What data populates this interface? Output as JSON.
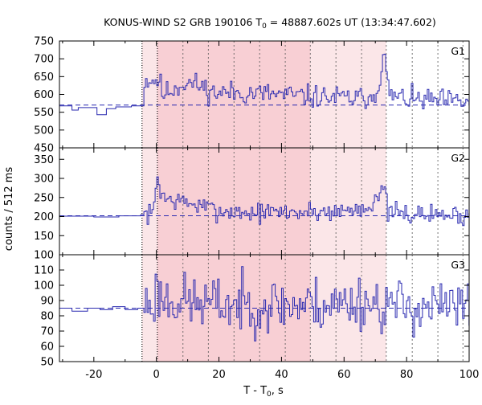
{
  "chart_data": {
    "type": "line",
    "title_main": "KONUS-WIND S2 GRB 190106 T",
    "title_sub": "0",
    "title_rest": " = 48887.602s UT (13:34:47.602)",
    "xlabel_main": "T - T",
    "xlabel_sub": "0",
    "xlabel_rest": ", s",
    "ylabel": "counts / 512 ms",
    "xlim": [
      -31,
      100
    ],
    "xticks": [
      "-20",
      "0",
      "20",
      "40",
      "60",
      "80",
      "100"
    ],
    "xtick_values": [
      -20,
      0,
      20,
      40,
      60,
      80,
      100
    ],
    "bin_width_s": 0.512,
    "regions": {
      "light_shade": [
        -4.6,
        73.5
      ],
      "dark_shade": [
        0.3,
        49.2
      ],
      "dotted_bounds": [
        -4.6,
        0.3
      ],
      "dashed_dividers": [
        8.5,
        16.6,
        24.8,
        33.0,
        41.2,
        49.2,
        57.4,
        65.6,
        73.5,
        81.8,
        90.0,
        98.0
      ]
    },
    "colors": {
      "line": "#2a2ab0",
      "light_shade": "#fbe6e8",
      "dark_shade": "#f8cfd4",
      "background_dashed": "#2a2ab0"
    },
    "panels": [
      {
        "name": "G1",
        "ylim": [
          450,
          750
        ],
        "yticks": [
          "450",
          "500",
          "550",
          "600",
          "650",
          "700",
          "750"
        ],
        "ytick_values": [
          450,
          500,
          550,
          600,
          650,
          700,
          750
        ],
        "background": 570,
        "pre_steps": [
          [
            -31,
            568
          ],
          [
            -27,
            556
          ],
          [
            -25,
            563
          ],
          [
            -19,
            543
          ],
          [
            -16,
            560
          ],
          [
            -13,
            565
          ],
          [
            -8,
            568
          ]
        ],
        "peaks": [
          [
            1,
            640
          ],
          [
            2,
            600
          ],
          [
            9,
            632
          ],
          [
            12,
            630
          ],
          [
            15,
            620
          ],
          [
            18,
            605
          ],
          [
            25,
            605
          ],
          [
            35,
            602
          ],
          [
            45,
            596
          ],
          [
            55,
            592
          ],
          [
            65,
            588
          ],
          [
            70,
            600
          ],
          [
            72.3,
            680
          ],
          [
            72.8,
            718
          ],
          [
            73.8,
            632
          ],
          [
            75,
            595
          ],
          [
            82,
            585
          ],
          [
            90,
            582
          ],
          [
            100,
            578
          ]
        ],
        "noise": 16,
        "seed": 11
      },
      {
        "name": "G2",
        "ylim": [
          100,
          380
        ],
        "yticks": [
          "100",
          "150",
          "200",
          "250",
          "300",
          "350"
        ],
        "ytick_values": [
          100,
          150,
          200,
          250,
          300,
          350
        ],
        "background": 202,
        "pre_steps": [
          [
            -31,
            201
          ],
          [
            -20,
            199
          ],
          [
            -12,
            202
          ],
          [
            -5,
            205
          ]
        ],
        "peaks": [
          [
            -1,
            206
          ],
          [
            -0.3,
            265
          ],
          [
            0.2,
            315
          ],
          [
            1,
            275
          ],
          [
            3,
            245
          ],
          [
            8,
            240
          ],
          [
            15,
            225
          ],
          [
            20,
            215
          ],
          [
            30,
            210
          ],
          [
            40,
            212
          ],
          [
            50,
            212
          ],
          [
            60,
            215
          ],
          [
            68,
            225
          ],
          [
            70,
            255
          ],
          [
            73,
            265
          ],
          [
            74,
            212
          ],
          [
            80,
            206
          ],
          [
            90,
            205
          ],
          [
            100,
            202
          ]
        ],
        "noise": 13,
        "seed": 7
      },
      {
        "name": "G3",
        "ylim": [
          50,
          120
        ],
        "yticks": [
          "50",
          "60",
          "70",
          "80",
          "90",
          "100",
          "110"
        ],
        "ytick_values": [
          50,
          60,
          70,
          80,
          90,
          100,
          110
        ],
        "background": 85,
        "pre_steps": [
          [
            -31,
            85
          ],
          [
            -27,
            83
          ],
          [
            -22,
            85
          ],
          [
            -18,
            84
          ],
          [
            -14,
            86
          ],
          [
            -10,
            84
          ],
          [
            -6,
            85
          ]
        ],
        "peaks": [
          [
            -1,
            88
          ],
          [
            0,
            96
          ],
          [
            3,
            91
          ],
          [
            15,
            88
          ],
          [
            30,
            87
          ],
          [
            45,
            87
          ],
          [
            60,
            88
          ],
          [
            66,
            90
          ],
          [
            72,
            87
          ],
          [
            85,
            86
          ],
          [
            100,
            85
          ]
        ],
        "noise": 9,
        "seed": 23
      }
    ]
  }
}
